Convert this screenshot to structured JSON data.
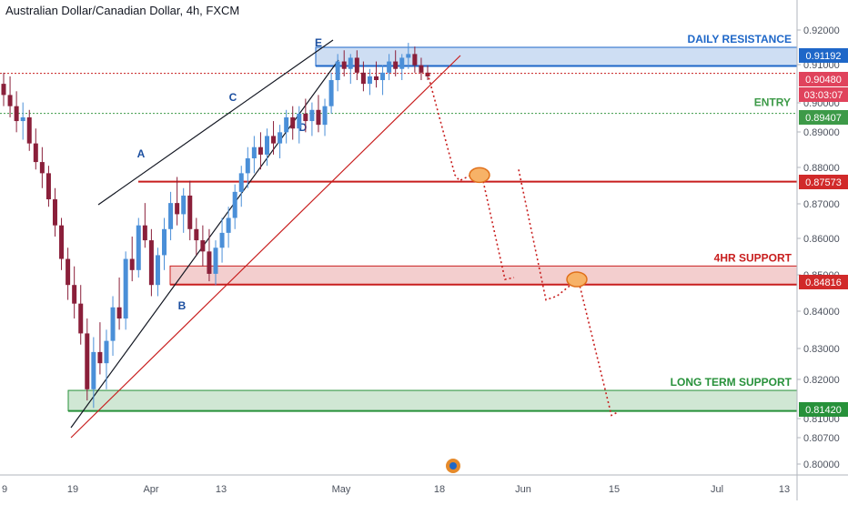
{
  "header": {
    "title": "Australian Dollar/Canadian Dollar, 4h, FXCM"
  },
  "chart_data": {
    "type": "candlestick",
    "symbol": "Australian Dollar/Canadian Dollar",
    "timeframe": "4h",
    "source": "FXCM",
    "ylim": [
      0.797,
      0.9245
    ],
    "y_ticks": [
      "0.92000",
      "0.91000",
      "0.90000",
      "0.89000",
      "0.88000",
      "0.87000",
      "0.86000",
      "0.85000",
      "0.84000",
      "0.83000",
      "0.82000",
      "0.81000",
      "0.80700",
      "0.80000"
    ],
    "x_ticks": [
      "9",
      "19",
      "Apr",
      "13",
      "May",
      "18",
      "Jun",
      "15",
      "Jul",
      "13"
    ],
    "point_labels": [
      "A",
      "B",
      "C",
      "D",
      "E"
    ],
    "zones": [
      {
        "name": "DAILY RESISTANCE",
        "top": 0.9118,
        "bottom": 0.9068,
        "color": "#1e67c8"
      },
      {
        "name": "4HR SUPPORT",
        "top": 0.8531,
        "bottom": 0.8481,
        "color": "#c81e1e"
      },
      {
        "name": "LONG TERM SUPPORT",
        "top": 0.8197,
        "bottom": 0.8142,
        "color": "#27913a"
      }
    ],
    "levels": [
      {
        "label": "ENTRY",
        "price": "0.89407",
        "color": "#3d9a48",
        "style": "dotted"
      },
      {
        "label": "",
        "price": "0.87573",
        "color": "#c81e1e",
        "style": "solid"
      },
      {
        "label": "",
        "price": "0.90480",
        "color": "#c81e1e",
        "style": "dotted"
      }
    ],
    "price_badges": [
      {
        "text": "0.91192",
        "color": "#1e67c8"
      },
      {
        "text": "0.90480",
        "color": "#e0435c"
      },
      {
        "text": "03:03:07",
        "color": "#e0435c"
      },
      {
        "text": "0.89407",
        "color": "#3d9a48"
      },
      {
        "text": "0.87573",
        "color": "#d12a2a"
      },
      {
        "text": "0.84816",
        "color": "#d12a2a"
      },
      {
        "text": "0.81420",
        "color": "#27913a"
      }
    ],
    "candles": [
      [
        0.902,
        0.905,
        0.896,
        0.899
      ],
      [
        0.899,
        0.904,
        0.893,
        0.896
      ],
      [
        0.896,
        0.9,
        0.889,
        0.892
      ],
      [
        0.892,
        0.897,
        0.887,
        0.893
      ],
      [
        0.893,
        0.895,
        0.884,
        0.886
      ],
      [
        0.886,
        0.89,
        0.879,
        0.881
      ],
      [
        0.881,
        0.885,
        0.874,
        0.878
      ],
      [
        0.878,
        0.88,
        0.869,
        0.871
      ],
      [
        0.871,
        0.874,
        0.861,
        0.864
      ],
      [
        0.864,
        0.866,
        0.852,
        0.855
      ],
      [
        0.855,
        0.858,
        0.844,
        0.848
      ],
      [
        0.848,
        0.853,
        0.839,
        0.843
      ],
      [
        0.843,
        0.848,
        0.832,
        0.835
      ],
      [
        0.835,
        0.839,
        0.817,
        0.82
      ],
      [
        0.82,
        0.834,
        0.815,
        0.83
      ],
      [
        0.83,
        0.838,
        0.824,
        0.827
      ],
      [
        0.827,
        0.836,
        0.82,
        0.833
      ],
      [
        0.833,
        0.845,
        0.829,
        0.842
      ],
      [
        0.842,
        0.85,
        0.836,
        0.839
      ],
      [
        0.839,
        0.857,
        0.836,
        0.855
      ],
      [
        0.855,
        0.861,
        0.849,
        0.852
      ],
      [
        0.852,
        0.866,
        0.85,
        0.864
      ],
      [
        0.864,
        0.87,
        0.858,
        0.86
      ],
      [
        0.86,
        0.863,
        0.845,
        0.848
      ],
      [
        0.848,
        0.858,
        0.845,
        0.856
      ],
      [
        0.856,
        0.866,
        0.852,
        0.863
      ],
      [
        0.863,
        0.873,
        0.86,
        0.87
      ],
      [
        0.87,
        0.877,
        0.864,
        0.867
      ],
      [
        0.867,
        0.874,
        0.862,
        0.872
      ],
      [
        0.872,
        0.876,
        0.86,
        0.863
      ],
      [
        0.863,
        0.866,
        0.856,
        0.86
      ],
      [
        0.86,
        0.864,
        0.853,
        0.857
      ],
      [
        0.857,
        0.863,
        0.849,
        0.851
      ],
      [
        0.851,
        0.86,
        0.848,
        0.858
      ],
      [
        0.858,
        0.866,
        0.854,
        0.862
      ],
      [
        0.862,
        0.869,
        0.858,
        0.866
      ],
      [
        0.866,
        0.875,
        0.863,
        0.873
      ],
      [
        0.873,
        0.88,
        0.869,
        0.878
      ],
      [
        0.878,
        0.885,
        0.874,
        0.882
      ],
      [
        0.882,
        0.888,
        0.878,
        0.885
      ],
      [
        0.885,
        0.889,
        0.879,
        0.883
      ],
      [
        0.883,
        0.89,
        0.88,
        0.888
      ],
      [
        0.888,
        0.892,
        0.883,
        0.886
      ],
      [
        0.886,
        0.891,
        0.882,
        0.889
      ],
      [
        0.889,
        0.895,
        0.886,
        0.893
      ],
      [
        0.893,
        0.896,
        0.887,
        0.89
      ],
      [
        0.89,
        0.896,
        0.886,
        0.894
      ],
      [
        0.894,
        0.898,
        0.889,
        0.892
      ],
      [
        0.892,
        0.897,
        0.888,
        0.895
      ],
      [
        0.895,
        0.899,
        0.889,
        0.891
      ],
      [
        0.891,
        0.898,
        0.888,
        0.896
      ],
      [
        0.896,
        0.905,
        0.894,
        0.903
      ],
      [
        0.903,
        0.91,
        0.9,
        0.908
      ],
      [
        0.908,
        0.911,
        0.904,
        0.906
      ],
      [
        0.906,
        0.91,
        0.902,
        0.909
      ],
      [
        0.909,
        0.911,
        0.903,
        0.905
      ],
      [
        0.905,
        0.908,
        0.9,
        0.902
      ],
      [
        0.902,
        0.906,
        0.899,
        0.904
      ],
      [
        0.904,
        0.908,
        0.901,
        0.903
      ],
      [
        0.903,
        0.907,
        0.899,
        0.905
      ],
      [
        0.905,
        0.91,
        0.903,
        0.908
      ],
      [
        0.908,
        0.911,
        0.904,
        0.906
      ],
      [
        0.906,
        0.91,
        0.903,
        0.909
      ],
      [
        0.909,
        0.913,
        0.906,
        0.91
      ],
      [
        0.91,
        0.912,
        0.905,
        0.907
      ],
      [
        0.907,
        0.909,
        0.903,
        0.905
      ],
      [
        0.905,
        0.907,
        0.903,
        0.904
      ]
    ],
    "forecast_path": [
      [
        [
          0.9048
        ],
        [
          0.8775
        ],
        [
          0.876
        ],
        [
          0.878
        ]
      ],
      [
        [
          0.877
        ],
        [
          0.8495
        ],
        [
          0.85
        ]
      ],
      [
        [
          0.879
        ],
        [
          0.844
        ],
        [
          0.845
        ],
        [
          0.8495
        ]
      ],
      [
        [
          0.85
        ],
        [
          0.813
        ],
        [
          0.814
        ]
      ]
    ]
  }
}
